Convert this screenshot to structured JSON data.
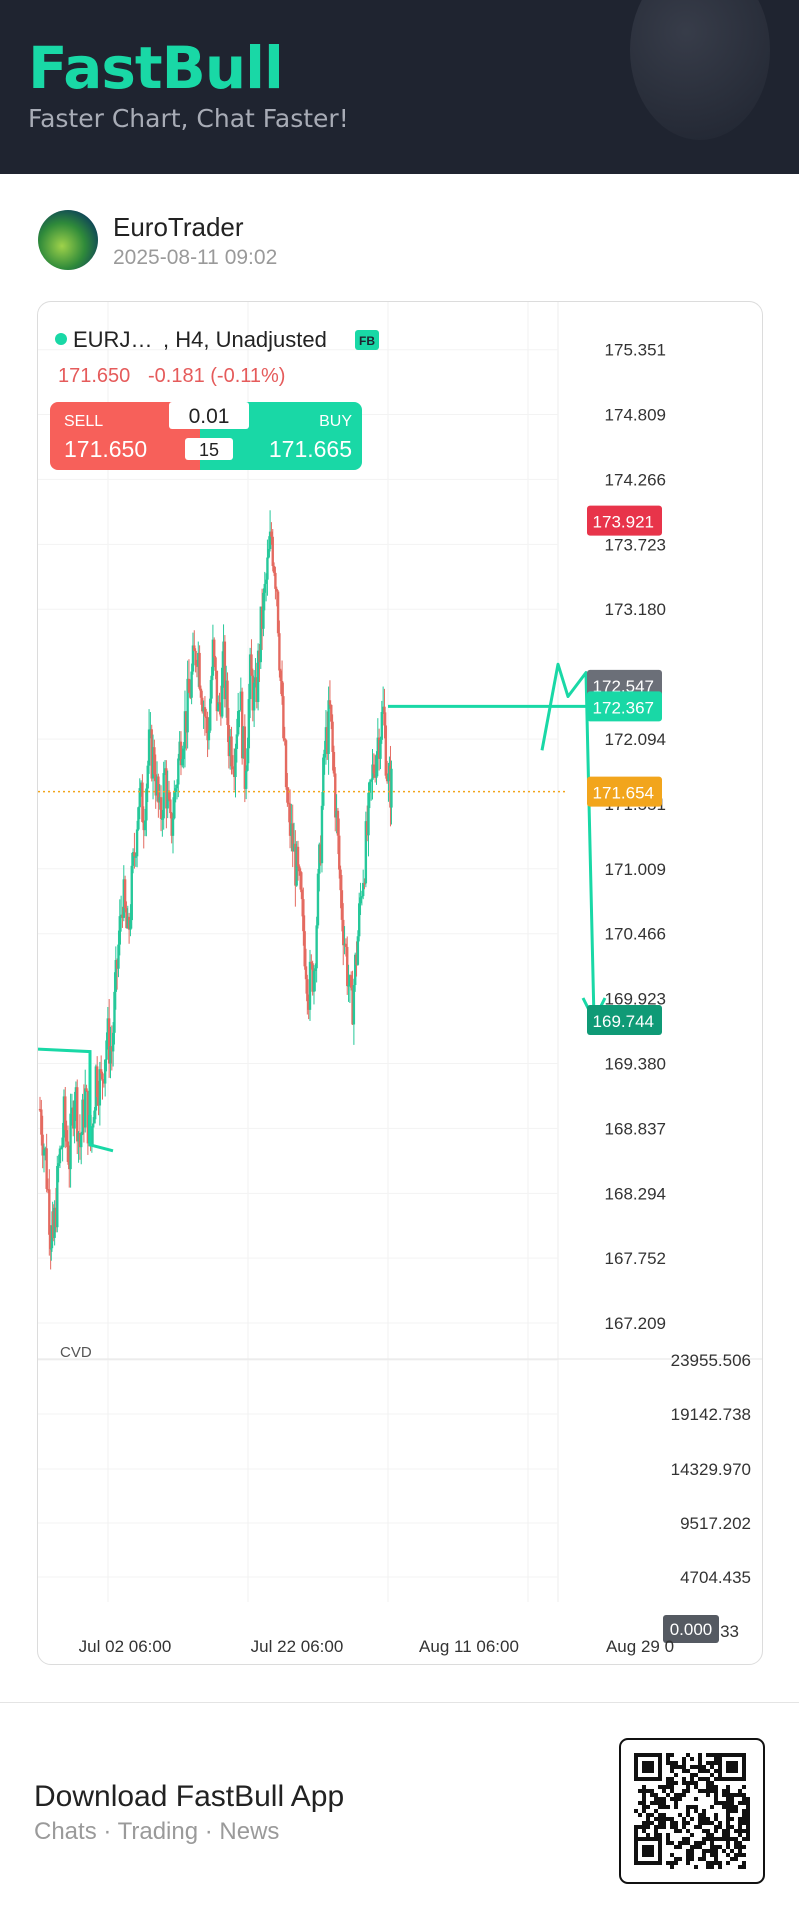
{
  "header": {
    "logo": "FastBull",
    "tagline": "Faster Chart, Chat Faster!"
  },
  "post": {
    "author": "EuroTrader",
    "time": "2025-08-11 09:02",
    "avatar_icon": "globe-avatar-icon"
  },
  "chart_header": {
    "symbol": "EURJ…",
    "params": ", H4, Unadjusted",
    "badge": "FB",
    "status_color": "#19d8a6",
    "last": "171.650",
    "change": "-0.181 (-0.11%)",
    "sell_label": "SELL",
    "sell_price": "171.650",
    "buy_label": "BUY",
    "buy_price": "171.665",
    "lot": "0.01",
    "spread": "15"
  },
  "chart_data": {
    "type": "candlestick",
    "price_ticks": [
      "175.351",
      "174.809",
      "174.266",
      "173.723",
      "173.180",
      "172.094",
      "171.009",
      "170.466",
      "169.380",
      "168.837",
      "168.294",
      "167.752",
      "167.209"
    ],
    "price_tick_values": [
      175.351,
      174.809,
      174.266,
      173.723,
      173.18,
      172.094,
      171.009,
      170.466,
      169.38,
      168.837,
      168.294,
      167.752,
      167.209
    ],
    "price_range": [
      166.9,
      175.75
    ],
    "date_ticks": [
      "Jul 02 06:00",
      "Jul 22 06:00",
      "Aug 11 06:00",
      "Aug 29 0"
    ],
    "price_tags": [
      {
        "label": "173.921",
        "value": 173.921,
        "color": "#e8344a"
      },
      {
        "label": "172.547",
        "value": 172.547,
        "color": "#6b6f78"
      },
      {
        "label": "172.367",
        "value": 172.367,
        "color": "#19d8a6"
      },
      {
        "label": "171.654",
        "value": 171.654,
        "color": "#f2a51c"
      },
      {
        "label": "169.744",
        "value": 169.744,
        "color": "#0f9a76"
      }
    ],
    "partially_hidden_ticks": [
      "169.923",
      "171.551"
    ],
    "price_path": [
      [
        0,
        169.0
      ],
      [
        4,
        168.6
      ],
      [
        8,
        168.0
      ],
      [
        10,
        167.9
      ],
      [
        14,
        168.5
      ],
      [
        18,
        168.9
      ],
      [
        22,
        168.6
      ],
      [
        26,
        169.2
      ],
      [
        30,
        168.7
      ],
      [
        34,
        169.1
      ],
      [
        38,
        168.7
      ],
      [
        42,
        169.3
      ],
      [
        46,
        169.2
      ],
      [
        50,
        169.6
      ],
      [
        54,
        169.5
      ],
      [
        58,
        170.2
      ],
      [
        62,
        170.8
      ],
      [
        66,
        170.4
      ],
      [
        70,
        171.0
      ],
      [
        74,
        171.6
      ],
      [
        78,
        171.5
      ],
      [
        82,
        172.0
      ],
      [
        86,
        171.9
      ],
      [
        90,
        171.4
      ],
      [
        94,
        171.8
      ],
      [
        98,
        171.3
      ],
      [
        102,
        171.7
      ],
      [
        106,
        172.1
      ],
      [
        110,
        172.3
      ],
      [
        114,
        172.6
      ],
      [
        118,
        172.9
      ],
      [
        122,
        172.5
      ],
      [
        126,
        172.1
      ],
      [
        130,
        172.8
      ],
      [
        134,
        172.3
      ],
      [
        138,
        172.7
      ],
      [
        142,
        172.1
      ],
      [
        146,
        172.0
      ],
      [
        150,
        172.5
      ],
      [
        154,
        171.8
      ],
      [
        158,
        172.6
      ],
      [
        162,
        172.4
      ],
      [
        166,
        173.0
      ],
      [
        170,
        173.4
      ],
      [
        174,
        173.8
      ],
      [
        178,
        173.4
      ],
      [
        182,
        172.3
      ],
      [
        186,
        171.5
      ],
      [
        190,
        171.2
      ],
      [
        194,
        170.9
      ],
      [
        198,
        170.5
      ],
      [
        202,
        170.0
      ],
      [
        206,
        170.2
      ],
      [
        210,
        171.0
      ],
      [
        214,
        172.0
      ],
      [
        218,
        172.3
      ],
      [
        222,
        171.6
      ],
      [
        226,
        170.8
      ],
      [
        230,
        170.3
      ],
      [
        234,
        169.8
      ],
      [
        238,
        170.3
      ],
      [
        242,
        170.9
      ],
      [
        246,
        171.3
      ],
      [
        250,
        171.8
      ],
      [
        254,
        172.1
      ],
      [
        258,
        172.3
      ],
      [
        262,
        171.7
      ],
      [
        265,
        171.7
      ]
    ],
    "drawing": {
      "horizontal_level": 172.367,
      "target": 169.744,
      "zigzag": [
        [
          172.0
        ],
        [
          172.75
        ],
        [
          172.45
        ],
        [
          172.7
        ]
      ]
    },
    "indicator": {
      "name": "CVD",
      "ticks": [
        "23955.506",
        "19142.738",
        "14329.970",
        "9517.202",
        "4704.435",
        "0.000",
        "33"
      ],
      "last": "0.000"
    }
  },
  "footer": {
    "title": "Download FastBull App",
    "subtitle": "Chats · Trading · News",
    "qr_icon": "qr-code-icon"
  }
}
